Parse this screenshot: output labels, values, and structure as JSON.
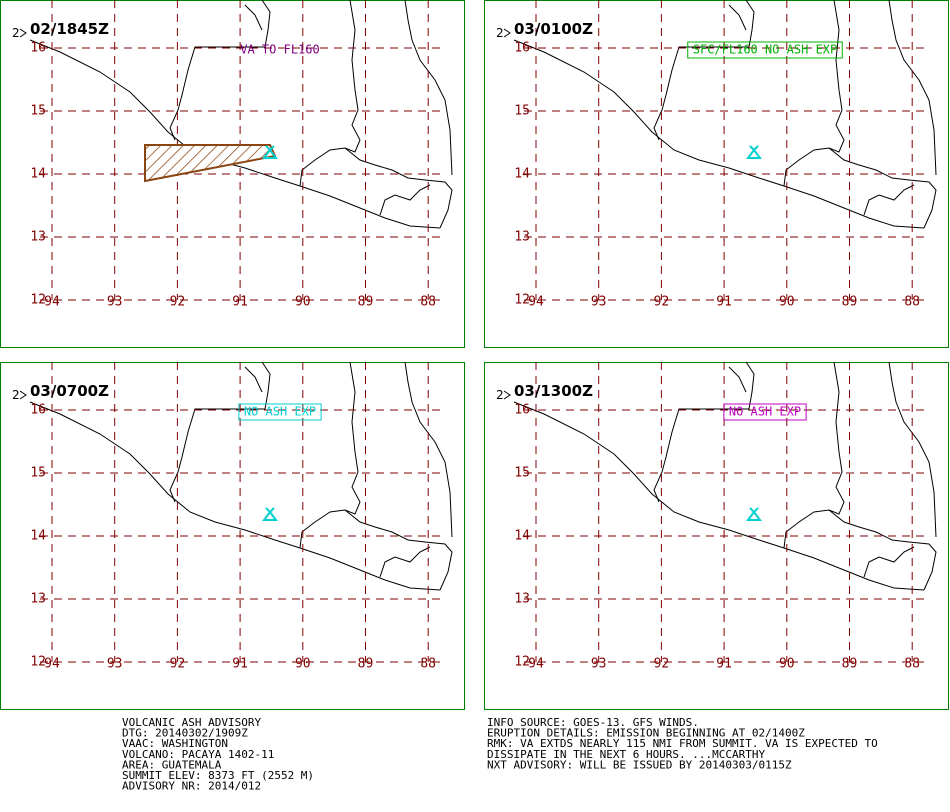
{
  "panels": [
    {
      "time": "02/1845Z",
      "annotation": "VA TO FL160",
      "annotation_color": "#800080",
      "boxed": false,
      "ash_area": true
    },
    {
      "time": "03/0100Z",
      "annotation": "SFC/FL160 NO ASH EXP",
      "annotation_color": "#00b000",
      "boxed": true,
      "ash_area": false
    },
    {
      "time": "03/0700Z",
      "annotation": "NO ASH EXP",
      "annotation_color": "#00d0d0",
      "boxed": true,
      "ash_area": false
    },
    {
      "time": "03/1300Z",
      "annotation": "NO ASH EXP",
      "annotation_color": "#c000c0",
      "boxed": true,
      "ash_area": false
    }
  ],
  "corner_mark": "2",
  "lat_labels": [
    16,
    15,
    14,
    13,
    12
  ],
  "lon_labels": [
    94,
    93,
    92,
    91,
    90,
    89,
    88
  ],
  "advisory_left": [
    "VOLCANIC ASH ADVISORY",
    "DTG: 20140302/1909Z",
    "VAAC: WASHINGTON",
    "VOLCANO: PACAYA 1402-11",
    "AREA: GUATEMALA",
    "SUMMIT ELEV: 8373 FT (2552 M)",
    "ADVISORY NR: 2014/012"
  ],
  "advisory_right": [
    "INFO SOURCE: GOES-13. GFS WINDS.",
    "ERUPTION DETAILS: EMISSION BEGINNING AT 02/1400Z",
    "RMK: VA EXTDS NEARLY 115 NMI FROM SUMMIT. VA IS EXPECTED TO",
    "DISSIPATE IN THE NEXT 6 HOURS. ...MCCARTHY",
    "NXT ADVISORY: WILL BE ISSUED BY 20140303/0115Z"
  ]
}
